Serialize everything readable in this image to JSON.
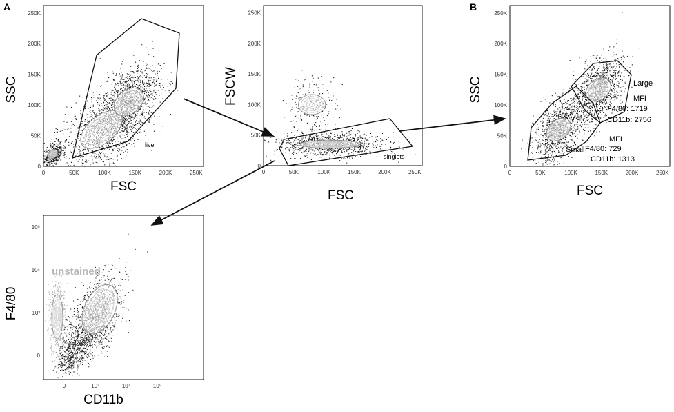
{
  "panel_letters": {
    "a": "A",
    "b": "B"
  },
  "chart_data": [
    {
      "type": "scatter",
      "title": "",
      "xlabel": "FSC",
      "ylabel": "SSC",
      "xlim": [
        0,
        262144
      ],
      "ylim": [
        0,
        262144
      ],
      "x_ticks": [
        "0",
        "50K",
        "100K",
        "150K",
        "200K",
        "250K"
      ],
      "y_ticks": [
        "0",
        "50K",
        "100K",
        "150K",
        "200K",
        "250K"
      ],
      "gates": [
        {
          "name": "live"
        }
      ],
      "populations": [
        {
          "center": [
            95000,
            60000
          ],
          "spread": [
            45000,
            40000
          ],
          "density": "high"
        },
        {
          "center": [
            140000,
            105000
          ],
          "spread": [
            30000,
            35000
          ],
          "density": "high"
        },
        {
          "center": [
            15000,
            20000
          ],
          "spread": [
            10000,
            12000
          ],
          "density": "medium"
        }
      ]
    },
    {
      "type": "scatter",
      "title": "",
      "xlabel": "FSC",
      "ylabel": "FSCW",
      "xlim": [
        0,
        262144
      ],
      "ylim": [
        0,
        262144
      ],
      "x_ticks": [
        "0",
        "50K",
        "100K",
        "150K",
        "200K",
        "250K"
      ],
      "y_ticks": [
        "0",
        "50K",
        "100K",
        "150K",
        "200K",
        "250K"
      ],
      "gates": [
        {
          "name": "singlets"
        }
      ],
      "populations": [
        {
          "center": [
            110000,
            35000
          ],
          "spread": [
            55000,
            12000
          ],
          "density": "high"
        },
        {
          "center": [
            80000,
            100000
          ],
          "spread": [
            25000,
            30000
          ],
          "density": "low"
        }
      ]
    },
    {
      "type": "scatter",
      "title": "",
      "xlabel": "FSC",
      "ylabel": "SSC",
      "xlim": [
        0,
        262144
      ],
      "ylim": [
        0,
        262144
      ],
      "x_ticks": [
        "0",
        "50K",
        "100K",
        "150K",
        "200K",
        "250K"
      ],
      "y_ticks": [
        "0",
        "50K",
        "100K",
        "150K",
        "200K",
        "250K"
      ],
      "gates": [
        {
          "name": "Large",
          "mfi_label": "MFI",
          "f4_80": "F4/80: 1719",
          "cd11b": "CD11b: 2756"
        },
        {
          "name": "Small",
          "mfi_label": "MFI",
          "f4_80": "F4/80: 729",
          "cd11b": "CD11b: 1313"
        }
      ],
      "populations": [
        {
          "center": [
            80000,
            60000
          ],
          "spread": [
            25000,
            28000
          ],
          "density": "high"
        },
        {
          "center": [
            145000,
            125000
          ],
          "spread": [
            25000,
            30000
          ],
          "density": "high"
        }
      ]
    },
    {
      "type": "scatter",
      "title": "",
      "xlabel": "CD11b",
      "ylabel": "F4/80",
      "scale": "biexponential",
      "x_ticks": [
        "0",
        "10³",
        "10⁴",
        "10⁵"
      ],
      "y_ticks": [
        "0",
        "10³",
        "10⁴",
        "10⁵"
      ],
      "annotations": [
        "unstained"
      ],
      "populations": [
        {
          "name": "unstained",
          "center": [
            -200,
            800
          ],
          "density": "medium",
          "color": "#aaaaaa"
        },
        {
          "name": "stained",
          "center": [
            1400,
            1200
          ],
          "density": "high",
          "color": "#222222"
        }
      ]
    }
  ]
}
